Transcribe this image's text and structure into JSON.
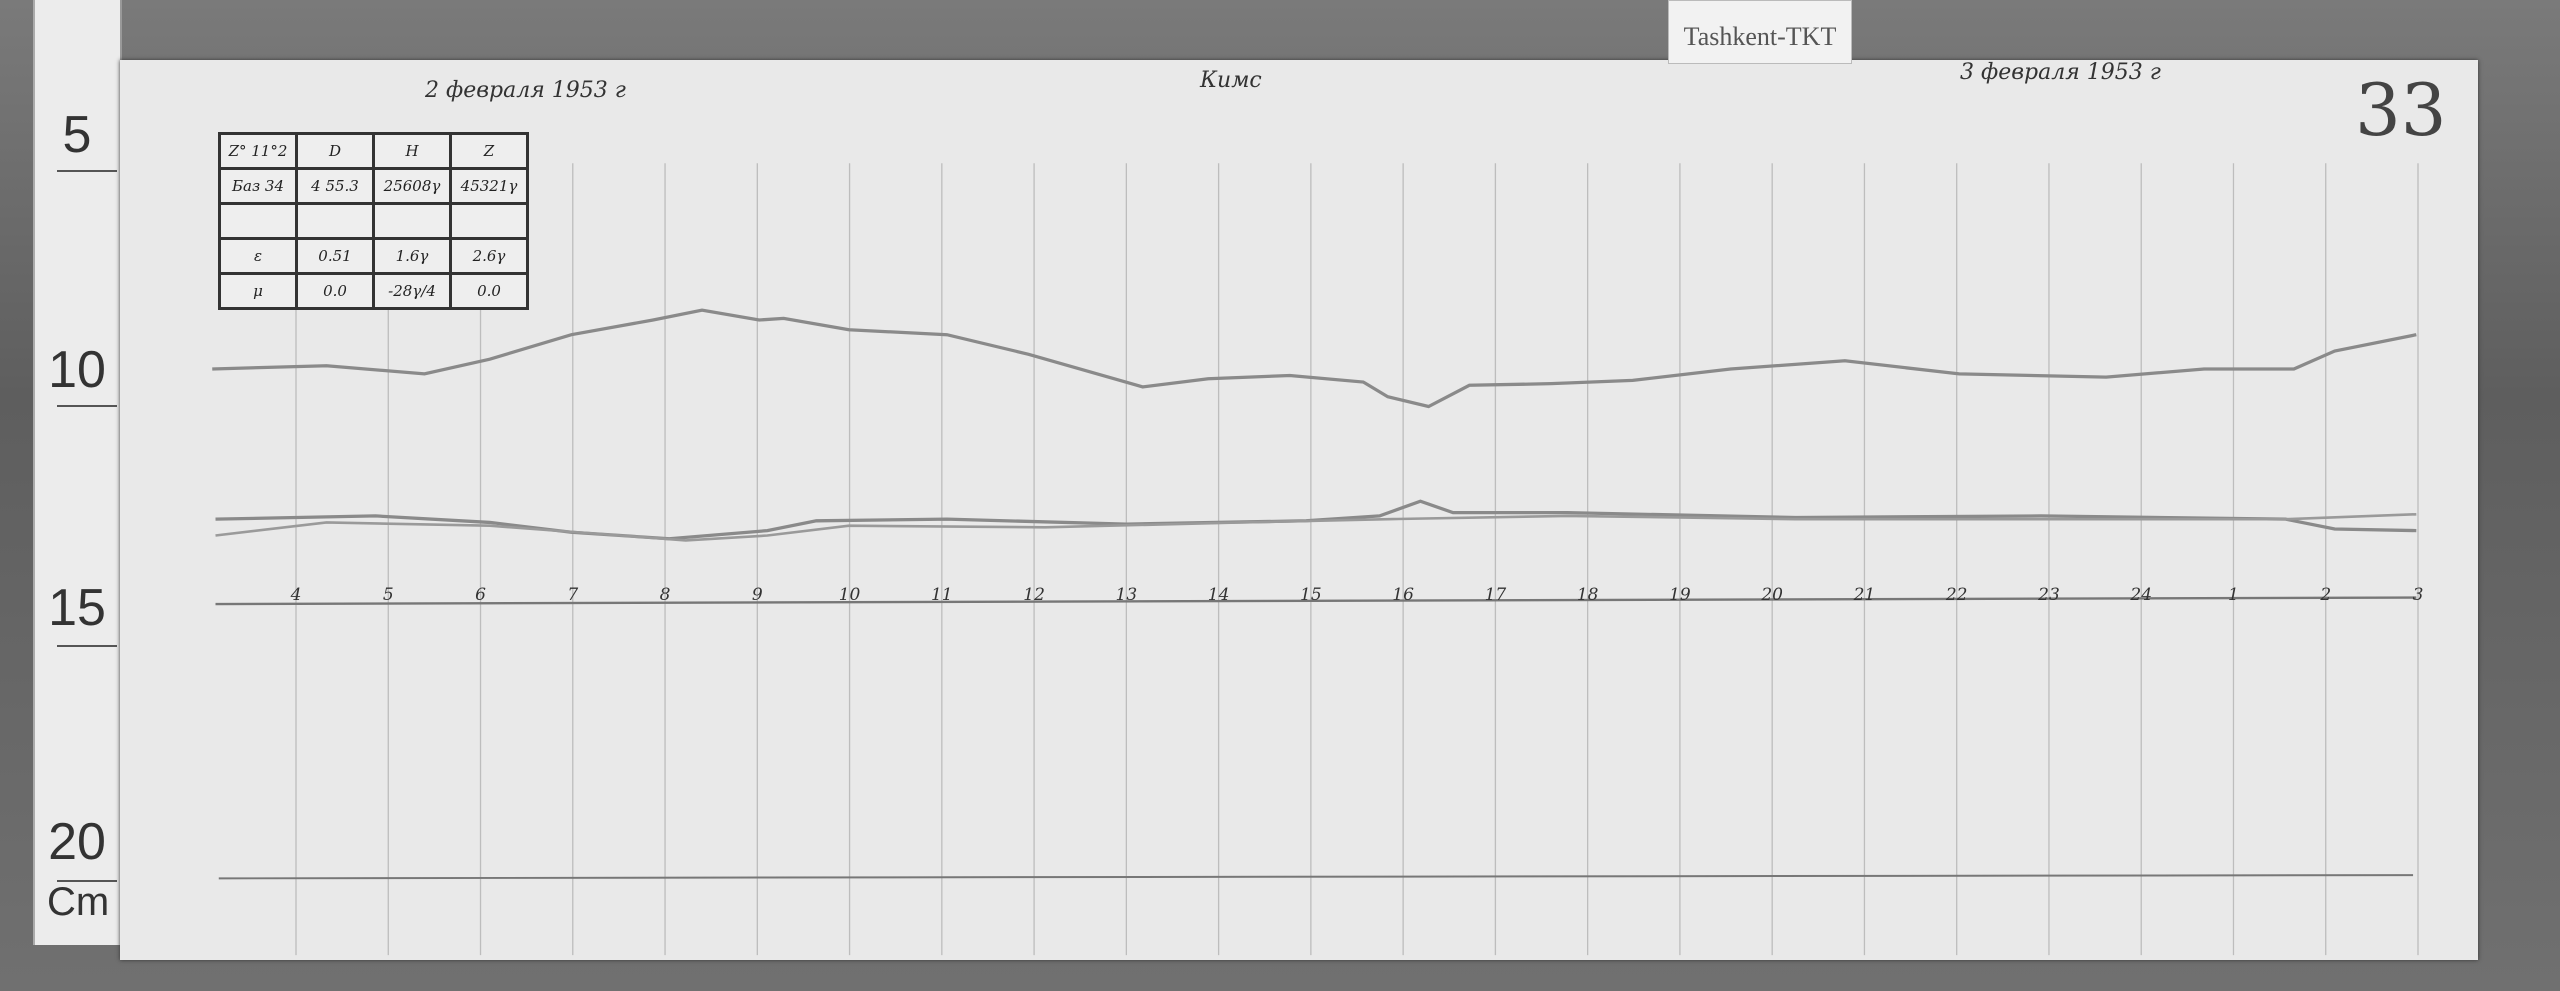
{
  "station_label": "Tashkent-TKT",
  "ruler": {
    "marks": [
      "5",
      "10",
      "15",
      "20"
    ],
    "unit": "Cm"
  },
  "sheet": {
    "date_left": "2 февраля 1953 г",
    "title": "Кимс",
    "date_right": "3 февраля 1953 г",
    "sheet_number": "33"
  },
  "table": {
    "header": [
      "Z° 11°2",
      "D",
      "H",
      "Z"
    ],
    "rows": [
      [
        "Баз 34",
        "4 55.3",
        "25608γ",
        "45321γ"
      ],
      [
        "",
        "",
        "",
        ""
      ],
      [
        "ε",
        "0.51",
        "1.6γ",
        "2.6γ"
      ],
      [
        "μ",
        "0.0",
        "-28γ/4",
        "0.0"
      ]
    ]
  },
  "hours": [
    "4",
    "5",
    "6",
    "7",
    "8",
    "9",
    "10",
    "11",
    "12",
    "13",
    "14",
    "15",
    "16",
    "17",
    "18",
    "19",
    "20",
    "21",
    "22",
    "23",
    "24",
    "1",
    "2",
    "3"
  ],
  "colors": {
    "paper": "#e9e9e9",
    "trace": "#8a8a8a",
    "ink": "#333333"
  }
}
